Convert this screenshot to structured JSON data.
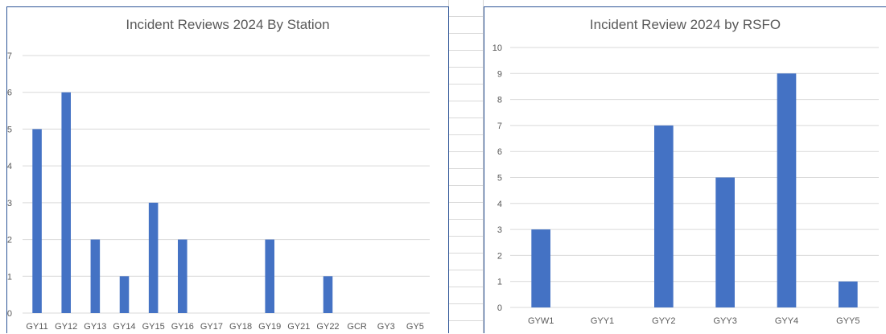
{
  "chart_data": [
    {
      "type": "bar",
      "title": "Incident Reviews 2024 By Station",
      "xlabel": "",
      "ylabel": "",
      "categories": [
        "GY11",
        "GY12",
        "GY13",
        "GY14",
        "GY15",
        "GY16",
        "GY17",
        "GY18",
        "GY19",
        "GY21",
        "GY22",
        "GCR",
        "GY3",
        "GY5"
      ],
      "values": [
        5,
        6,
        2,
        1,
        3,
        2,
        0,
        0,
        2,
        0,
        1,
        0,
        0,
        0
      ],
      "ylim": [
        0,
        7
      ],
      "yticks": [
        0,
        1,
        2,
        3,
        4,
        5,
        6,
        7
      ],
      "grid": true,
      "bar_color": "#4472c4"
    },
    {
      "type": "bar",
      "title": "Incident Review 2024 by RSFO",
      "xlabel": "",
      "ylabel": "",
      "categories": [
        "GYW1",
        "GYY1",
        "GYY2",
        "GYY3",
        "GYY4",
        "GYY5"
      ],
      "values": [
        3,
        0,
        7,
        5,
        9,
        1
      ],
      "ylim": [
        0,
        10
      ],
      "yticks": [
        0,
        1,
        2,
        3,
        4,
        5,
        6,
        7,
        8,
        9,
        10
      ],
      "grid": true,
      "bar_color": "#4472c4"
    }
  ]
}
